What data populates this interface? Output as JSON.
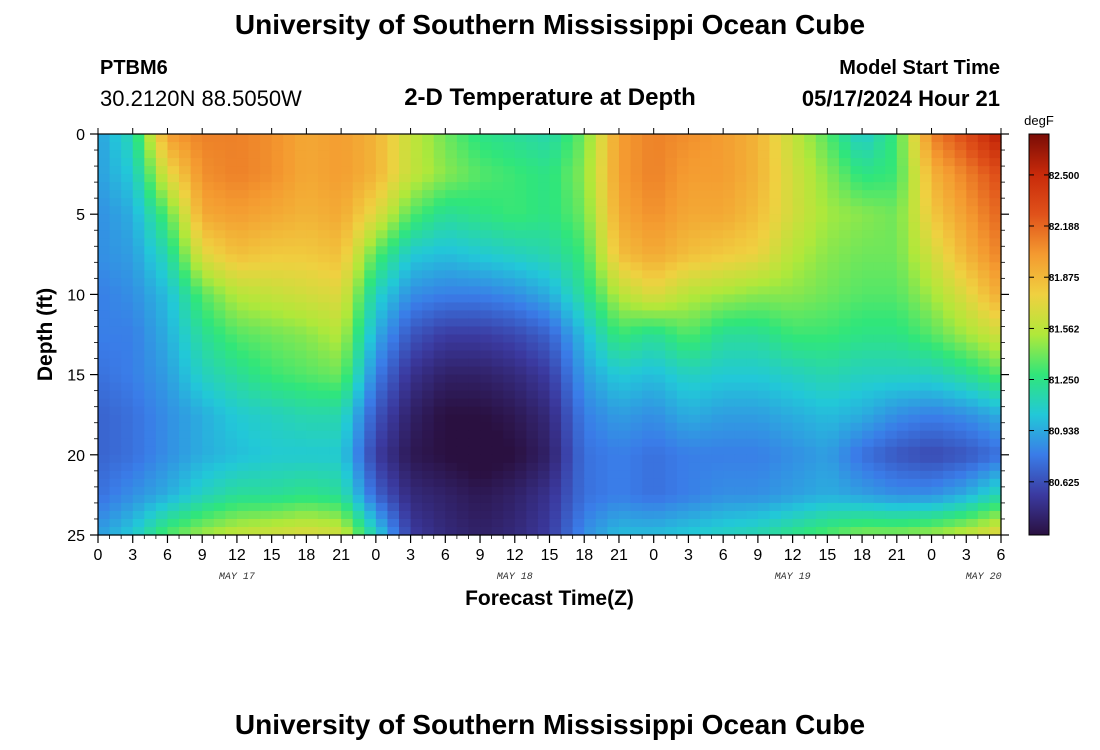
{
  "header": {
    "title": "University of Southern Mississippi Ocean Cube",
    "station_id": "PTBM6",
    "station_coords": "30.2120N  88.5050W",
    "plot_title": "2-D Temperature at Depth",
    "start_label": "Model Start Time",
    "start_time": "05/17/2024 Hour 21"
  },
  "footer": {
    "title": "University of Southern Mississippi Ocean Cube"
  },
  "chart_data": {
    "type": "heatmap",
    "title": "2-D Temperature at Depth",
    "xlabel": "Forecast Time(Z)",
    "ylabel": "Depth (ft)",
    "units": "degF",
    "ylim": [
      0,
      25
    ],
    "y_inverted": true,
    "yticks": [
      0,
      5,
      10,
      15,
      20,
      25
    ],
    "x_start_hour": 0,
    "x_end_hour": 78,
    "x_tick_step_hours": 3,
    "x_tick_labels": [
      "0",
      "3",
      "6",
      "9",
      "12",
      "15",
      "18",
      "21",
      "0",
      "3",
      "6",
      "9",
      "12",
      "15",
      "18",
      "21",
      "0",
      "3",
      "6",
      "9",
      "12",
      "15",
      "18",
      "21",
      "0",
      "3",
      "6"
    ],
    "date_labels": [
      {
        "label": "MAY 17",
        "hour": 12
      },
      {
        "label": "MAY 18",
        "hour": 36
      },
      {
        "label": "MAY 19",
        "hour": 60
      },
      {
        "label": "MAY 20",
        "hour": 76.5
      }
    ],
    "colorbar": {
      "label": "degF",
      "min": 80.3,
      "max": 82.75,
      "ticks": [
        "82.500",
        "82.188",
        "81.875",
        "81.562",
        "81.250",
        "80.938",
        "80.625"
      ],
      "colors": [
        "#2a1040",
        "#3b3aa0",
        "#3a7ce8",
        "#22c8d8",
        "#30e67a",
        "#b0e83a",
        "#f0d040",
        "#f49a30",
        "#e0521a",
        "#c82a0a",
        "#7a0c06"
      ]
    },
    "x_hours": [
      0,
      3,
      6,
      9,
      12,
      15,
      18,
      21,
      24,
      27,
      30,
      33,
      36,
      39,
      42,
      45,
      48,
      51,
      54,
      57,
      60,
      63,
      66,
      69,
      72,
      75,
      78
    ],
    "y_depths": [
      0,
      2.5,
      5,
      7.5,
      10,
      12.5,
      15,
      17.5,
      20,
      22.5,
      25
    ],
    "values": [
      [
        80.9,
        81.15,
        82.0,
        82.1,
        82.1,
        82.05,
        81.95,
        82.0,
        81.9,
        81.6,
        81.4,
        81.25,
        81.2,
        81.15,
        81.4,
        82.0,
        82.1,
        82.05,
        82.0,
        81.9,
        81.6,
        81.35,
        81.05,
        81.3,
        82.1,
        82.3,
        82.6
      ],
      [
        80.9,
        81.05,
        81.7,
        82.05,
        82.1,
        82.05,
        81.95,
        82.0,
        81.9,
        81.6,
        81.45,
        81.35,
        81.3,
        81.25,
        81.45,
        82.0,
        82.1,
        82.0,
        82.0,
        81.9,
        81.65,
        81.45,
        81.25,
        81.3,
        81.9,
        82.1,
        82.3
      ],
      [
        80.85,
        80.95,
        81.35,
        81.95,
        82.0,
        81.95,
        81.9,
        81.95,
        81.7,
        81.35,
        81.2,
        81.25,
        81.3,
        81.25,
        81.4,
        81.95,
        82.05,
        81.95,
        81.95,
        81.85,
        81.65,
        81.5,
        81.45,
        81.4,
        81.8,
        82.0,
        82.2
      ],
      [
        80.85,
        80.9,
        81.15,
        81.7,
        81.85,
        81.8,
        81.8,
        81.85,
        81.35,
        81.05,
        81.0,
        81.05,
        81.1,
        81.15,
        81.3,
        81.85,
        81.95,
        81.85,
        81.8,
        81.75,
        81.55,
        81.45,
        81.4,
        81.4,
        81.65,
        81.9,
        82.1
      ],
      [
        80.8,
        80.85,
        81.0,
        81.35,
        81.55,
        81.6,
        81.65,
        81.7,
        81.1,
        80.85,
        80.8,
        80.8,
        80.85,
        80.95,
        81.2,
        81.55,
        81.7,
        81.55,
        81.5,
        81.45,
        81.45,
        81.4,
        81.35,
        81.35,
        81.5,
        81.7,
        81.95
      ],
      [
        80.8,
        80.8,
        80.95,
        81.2,
        81.35,
        81.4,
        81.45,
        81.55,
        80.95,
        80.65,
        80.55,
        80.55,
        80.6,
        80.7,
        81.0,
        81.3,
        81.2,
        81.35,
        81.2,
        81.2,
        81.3,
        81.3,
        81.25,
        81.25,
        81.35,
        81.5,
        81.65
      ],
      [
        80.75,
        80.8,
        80.9,
        81.1,
        81.2,
        81.3,
        81.35,
        81.4,
        80.8,
        80.5,
        80.4,
        80.4,
        80.45,
        80.55,
        80.9,
        81.05,
        81.0,
        81.1,
        81.05,
        81.05,
        81.1,
        81.15,
        81.1,
        81.1,
        81.1,
        81.2,
        81.35
      ],
      [
        80.7,
        80.75,
        80.85,
        80.95,
        81.05,
        81.1,
        81.15,
        81.15,
        80.65,
        80.4,
        80.3,
        80.3,
        80.35,
        80.45,
        80.8,
        80.9,
        80.85,
        80.95,
        80.9,
        80.9,
        80.95,
        81.0,
        80.95,
        80.85,
        80.8,
        80.85,
        80.95
      ],
      [
        80.7,
        80.75,
        80.85,
        80.95,
        81.0,
        81.05,
        81.05,
        81.05,
        80.55,
        80.35,
        80.3,
        80.25,
        80.3,
        80.4,
        80.75,
        80.8,
        80.75,
        80.8,
        80.8,
        80.8,
        80.85,
        80.9,
        80.75,
        80.65,
        80.6,
        80.65,
        80.75
      ],
      [
        80.75,
        80.85,
        80.95,
        81.1,
        81.2,
        81.2,
        81.25,
        81.2,
        80.7,
        80.45,
        80.4,
        80.35,
        80.4,
        80.5,
        80.75,
        80.8,
        80.75,
        80.8,
        80.85,
        80.85,
        80.9,
        80.95,
        80.9,
        80.85,
        80.85,
        80.95,
        81.15
      ],
      [
        80.9,
        81.05,
        81.35,
        81.5,
        81.6,
        81.65,
        81.7,
        81.65,
        81.1,
        80.55,
        80.45,
        80.4,
        80.45,
        80.55,
        80.85,
        81.0,
        81.0,
        81.05,
        81.1,
        81.15,
        81.25,
        81.35,
        81.45,
        81.45,
        81.5,
        81.6,
        81.75
      ]
    ]
  }
}
